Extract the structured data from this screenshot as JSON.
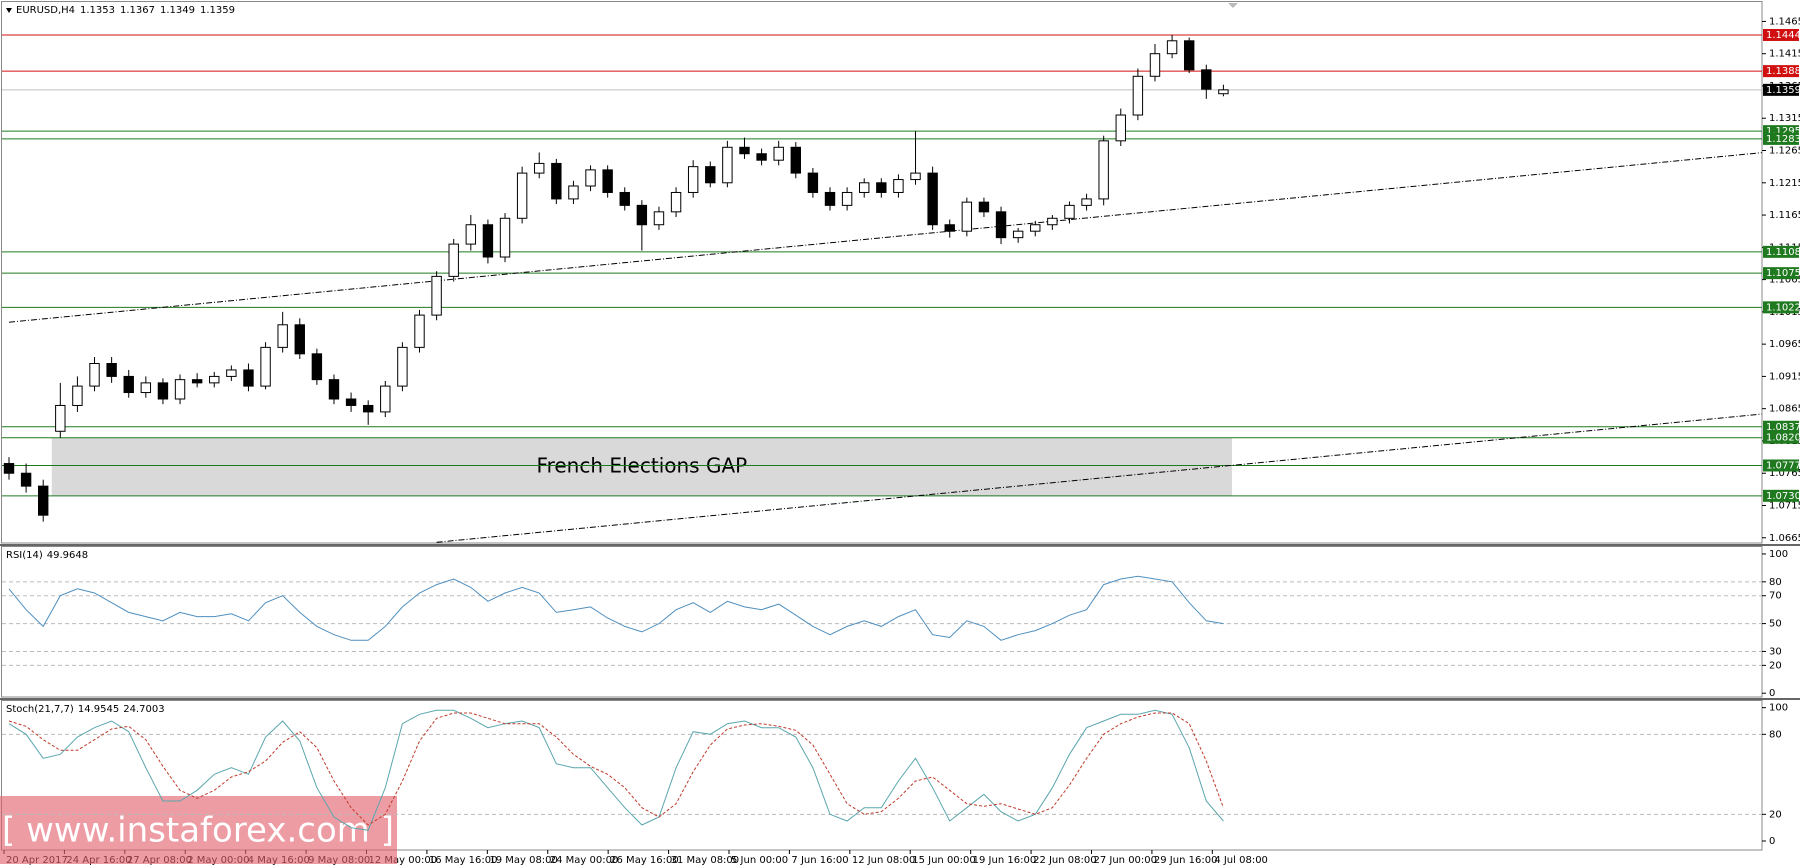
{
  "chart_data": [
    {
      "type": "candlestick",
      "title": "EURUSD,H4",
      "open": [
        1.078,
        1.0765,
        1.0745,
        1.083,
        1.087,
        1.09,
        1.0935,
        1.0915,
        1.089,
        1.0905,
        1.088,
        1.091,
        1.0905,
        1.0915,
        1.0925,
        1.09,
        1.096,
        1.0995,
        1.095,
        1.091,
        1.088,
        1.087,
        1.086,
        1.09,
        1.096,
        1.101,
        1.107,
        1.112,
        1.115,
        1.11,
        1.116,
        1.123,
        1.1245,
        1.119,
        1.121,
        1.1235,
        1.12,
        1.118,
        1.115,
        1.117,
        1.12,
        1.124,
        1.1215,
        1.127,
        1.126,
        1.125,
        1.127,
        1.123,
        1.12,
        1.118,
        1.12,
        1.1215,
        1.12,
        1.122,
        1.123,
        1.115,
        1.114,
        1.1185,
        1.117,
        1.113,
        1.114,
        1.115,
        1.116,
        1.118,
        1.119,
        1.128,
        1.132,
        1.138,
        1.1415,
        1.1435,
        1.139,
        1.1353
      ],
      "high": [
        1.079,
        1.078,
        1.0755,
        1.0905,
        1.0915,
        1.0945,
        1.0945,
        1.0925,
        1.0915,
        1.0912,
        1.0918,
        1.092,
        1.0922,
        1.0932,
        1.0935,
        1.0968,
        1.1015,
        1.1005,
        1.0958,
        1.0918,
        1.089,
        1.0878,
        1.0908,
        1.0968,
        1.1018,
        1.1078,
        1.1128,
        1.1165,
        1.1158,
        1.1168,
        1.124,
        1.1262,
        1.1252,
        1.1218,
        1.1242,
        1.1242,
        1.1208,
        1.1188,
        1.1178,
        1.1208,
        1.125,
        1.1248,
        1.128,
        1.1285,
        1.1268,
        1.128,
        1.1278,
        1.1238,
        1.1208,
        1.1208,
        1.1222,
        1.1222,
        1.1228,
        1.1295,
        1.124,
        1.1158,
        1.1192,
        1.1192,
        1.1178,
        1.1145,
        1.1156,
        1.1165,
        1.1186,
        1.1198,
        1.1288,
        1.133,
        1.1392,
        1.143,
        1.1444,
        1.144,
        1.1398,
        1.1367
      ],
      "low": [
        1.0755,
        1.0735,
        1.069,
        1.082,
        1.086,
        1.0892,
        1.0905,
        1.0882,
        1.0882,
        1.0872,
        1.0872,
        1.0898,
        1.0898,
        1.0908,
        1.0892,
        1.0895,
        1.0952,
        1.0942,
        1.0902,
        1.0872,
        1.086,
        1.084,
        1.0852,
        1.0892,
        1.0952,
        1.1002,
        1.1062,
        1.111,
        1.109,
        1.1092,
        1.1152,
        1.1222,
        1.1182,
        1.1182,
        1.1202,
        1.1192,
        1.1172,
        1.111,
        1.1142,
        1.1162,
        1.1192,
        1.1208,
        1.1208,
        1.1252,
        1.1242,
        1.1242,
        1.1222,
        1.1192,
        1.1172,
        1.1172,
        1.1192,
        1.1192,
        1.1192,
        1.1212,
        1.1142,
        1.113,
        1.1132,
        1.1162,
        1.112,
        1.1122,
        1.1132,
        1.1142,
        1.1152,
        1.1172,
        1.118,
        1.1272,
        1.1312,
        1.1372,
        1.1408,
        1.1385,
        1.1345,
        1.1349
      ],
      "close": [
        1.0765,
        1.0745,
        1.07,
        1.087,
        1.09,
        1.0935,
        1.0915,
        1.089,
        1.0905,
        1.088,
        1.091,
        1.0905,
        1.0915,
        1.0925,
        1.09,
        1.096,
        1.0995,
        1.095,
        1.091,
        1.088,
        1.087,
        1.086,
        1.09,
        1.096,
        1.101,
        1.107,
        1.112,
        1.115,
        1.11,
        1.116,
        1.123,
        1.1245,
        1.119,
        1.121,
        1.1235,
        1.12,
        1.118,
        1.115,
        1.117,
        1.12,
        1.124,
        1.1215,
        1.127,
        1.126,
        1.125,
        1.127,
        1.123,
        1.12,
        1.118,
        1.12,
        1.1215,
        1.12,
        1.122,
        1.123,
        1.115,
        1.114,
        1.1185,
        1.117,
        1.113,
        1.114,
        1.115,
        1.116,
        1.118,
        1.119,
        1.128,
        1.132,
        1.138,
        1.1415,
        1.1435,
        1.139,
        1.136,
        1.1359
      ],
      "time_labels": [
        "20 Apr 2017",
        "24 Apr 16:00",
        "27 Apr 08:00",
        "2 May 00:00",
        "4 May 16:00",
        "9 May 08:00",
        "12 May 00:00",
        "16 May 16:00",
        "19 May 08:00",
        "24 May 00:00",
        "26 May 16:00",
        "31 May 08:00",
        "5 Jun 00:00",
        "7 Jun 16:00",
        "12 Jun 08:00",
        "15 Jun 00:00",
        "19 Jun 16:00",
        "22 Jun 08:00",
        "27 Jun 00:00",
        "29 Jun 16:00",
        "4 Jul 08:00"
      ],
      "ylim": [
        1.066,
        1.1492
      ],
      "yticks": [
        1.1465,
        1.1415,
        1.1365,
        1.1315,
        1.1265,
        1.1215,
        1.1165,
        1.1115,
        1.1065,
        1.1015,
        1.0965,
        1.0915,
        1.0865,
        1.0815,
        1.0765,
        1.0715,
        1.0665
      ],
      "levels": [
        {
          "value": 1.1444,
          "color": "#d01010"
        },
        {
          "value": 1.1388,
          "color": "#d01010"
        },
        {
          "value": 1.1295,
          "color": "#1f7a1f"
        },
        {
          "value": 1.1283,
          "color": "#1f7a1f"
        },
        {
          "value": 1.1108,
          "color": "#1f7a1f"
        },
        {
          "value": 1.1075,
          "color": "#1f7a1f"
        },
        {
          "value": 1.1022,
          "color": "#1f7a1f"
        },
        {
          "value": 1.0837,
          "color": "#1f7a1f"
        },
        {
          "value": 1.082,
          "label": "1.0820",
          "color": "#1f7a1f"
        },
        {
          "value": 1.0777,
          "color": "#1f7a1f"
        },
        {
          "value": 1.073,
          "label": "1.0730",
          "color": "#1f7a1f"
        }
      ],
      "current_price": {
        "value": 1.1359,
        "color": "#000000"
      },
      "trendlines": [
        {
          "x": [
            0,
            103
          ],
          "y": [
            1.0999,
            1.1263
          ]
        },
        {
          "x": [
            25,
            103
          ],
          "y": [
            1.0658,
            1.0858
          ]
        }
      ],
      "gap": {
        "label": "French Elections GAP",
        "top": 1.082,
        "bottom": 1.073
      },
      "watermark": "[ www.instaforex.com ]"
    },
    {
      "type": "line",
      "title": "RSI(14)",
      "current": 49.9648,
      "ylim": [
        -2,
        105
      ],
      "yticks": [
        100,
        80,
        70,
        50,
        30,
        20,
        0
      ],
      "series": [
        {
          "name": "RSI",
          "color": "#4f8fbf",
          "values": [
            75,
            60,
            48,
            70,
            75,
            72,
            65,
            58,
            55,
            52,
            58,
            55,
            55,
            57,
            52,
            65,
            70,
            58,
            48,
            42,
            38,
            38,
            48,
            62,
            72,
            78,
            82,
            76,
            66,
            72,
            76,
            72,
            58,
            60,
            62,
            54,
            48,
            44,
            50,
            60,
            65,
            58,
            66,
            62,
            60,
            64,
            56,
            48,
            42,
            48,
            52,
            48,
            55,
            60,
            42,
            40,
            52,
            48,
            38,
            42,
            45,
            50,
            56,
            60,
            78,
            82,
            84,
            82,
            80,
            65,
            52,
            50
          ]
        }
      ]
    },
    {
      "type": "line",
      "title": "Stoch(21,7,7)",
      "ylim": [
        -6,
        105
      ],
      "yticks": [
        100,
        80,
        20,
        0
      ],
      "series": [
        {
          "name": "Main",
          "color": "#5aa6ad",
          "style": "solid",
          "current": 14.9545,
          "values": [
            88,
            80,
            62,
            65,
            78,
            85,
            90,
            82,
            55,
            30,
            30,
            38,
            50,
            55,
            50,
            78,
            90,
            75,
            40,
            18,
            10,
            8,
            40,
            88,
            95,
            98,
            98,
            92,
            85,
            88,
            90,
            85,
            58,
            55,
            55,
            40,
            25,
            12,
            18,
            55,
            82,
            80,
            88,
            90,
            85,
            85,
            78,
            55,
            20,
            15,
            25,
            25,
            45,
            62,
            40,
            15,
            25,
            35,
            22,
            15,
            20,
            40,
            65,
            85,
            90,
            95,
            95,
            98,
            95,
            70,
            30,
            15
          ]
        },
        {
          "name": "Signal",
          "color": "#c0392b",
          "style": "dashed",
          "current": 24.7003,
          "values": [
            90,
            86,
            76,
            68,
            68,
            76,
            84,
            86,
            76,
            56,
            38,
            32,
            38,
            48,
            52,
            60,
            74,
            82,
            70,
            45,
            25,
            12,
            20,
            45,
            75,
            92,
            96,
            96,
            92,
            88,
            88,
            88,
            78,
            65,
            56,
            50,
            40,
            25,
            18,
            28,
            52,
            72,
            84,
            87,
            88,
            86,
            83,
            72,
            50,
            28,
            20,
            22,
            32,
            45,
            48,
            38,
            28,
            26,
            28,
            24,
            20,
            25,
            42,
            62,
            80,
            88,
            93,
            96,
            96,
            88,
            60,
            25
          ]
        }
      ]
    }
  ]
}
